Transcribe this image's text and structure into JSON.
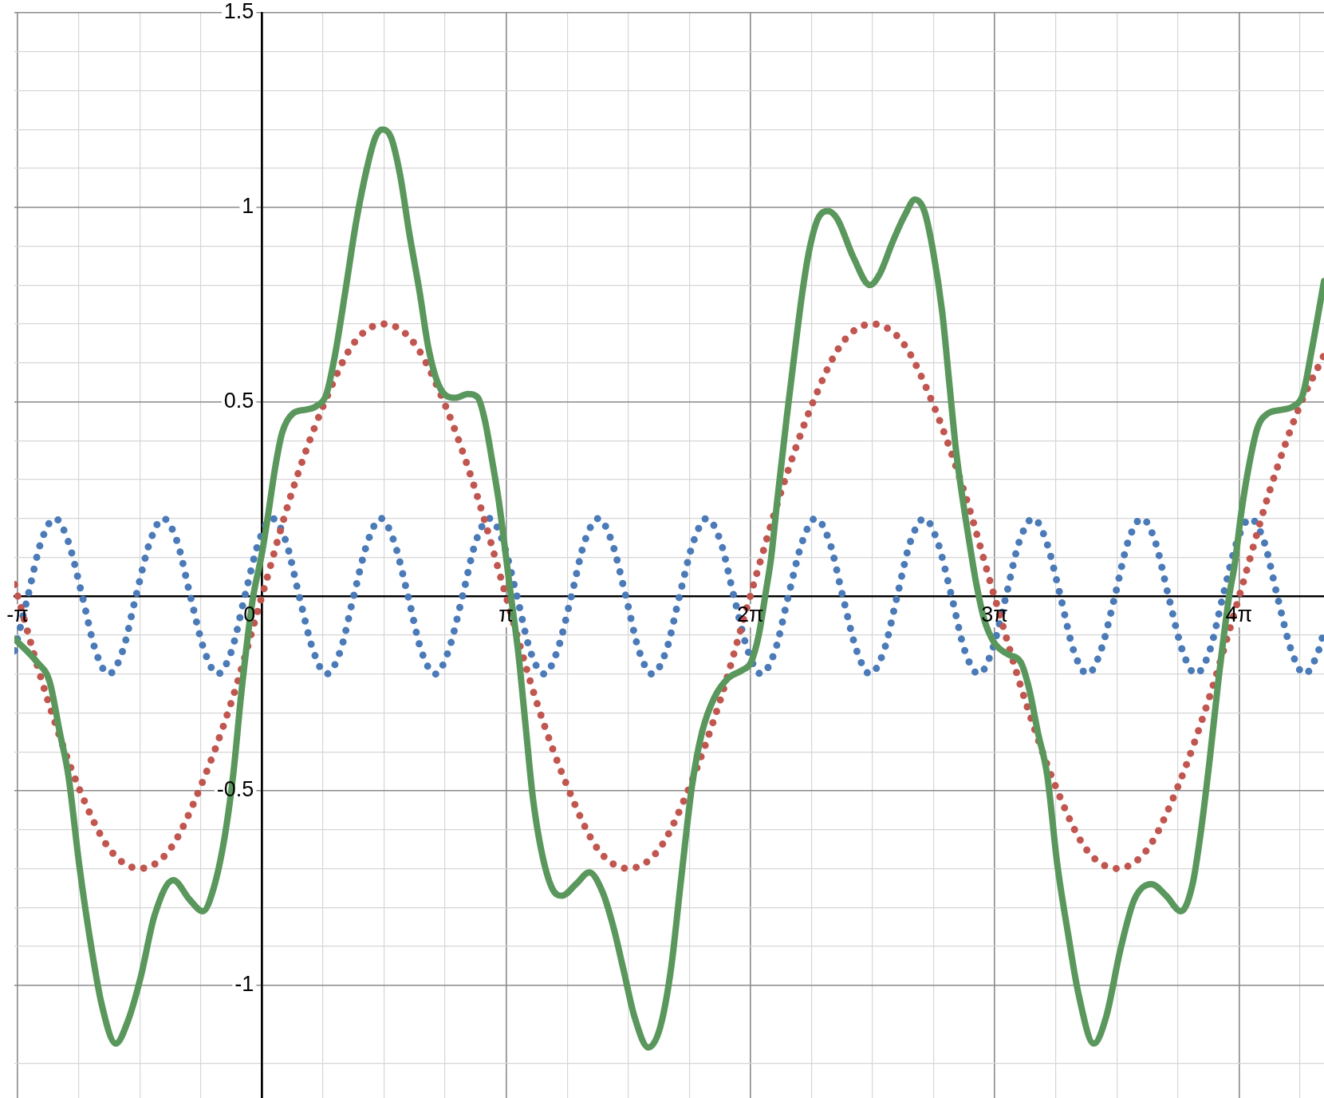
{
  "chart_data": {
    "type": "line",
    "xlim": [
      -3.184,
      13.66
    ],
    "ylim": [
      -1.29,
      1.5
    ],
    "xticks": [
      {
        "value": -3.1416,
        "label": "-π"
      },
      {
        "value": -2.3562,
        "label": null
      },
      {
        "value": -1.5708,
        "label": null
      },
      {
        "value": -0.7854,
        "label": null
      },
      0,
      {
        "value": 0.7854,
        "label": null
      },
      {
        "value": 1.5708,
        "label": null
      },
      {
        "value": 2.3562,
        "label": null
      },
      {
        "value": 3.1416,
        "label": "π"
      },
      {
        "value": 3.927,
        "label": null
      },
      {
        "value": 4.7124,
        "label": null
      },
      {
        "value": 5.4978,
        "label": null
      },
      {
        "value": 6.2832,
        "label": "2π"
      },
      {
        "value": 7.0686,
        "label": null
      },
      {
        "value": 7.854,
        "label": null
      },
      {
        "value": 8.6394,
        "label": null
      },
      {
        "value": 9.4248,
        "label": "3π"
      },
      {
        "value": 10.2102,
        "label": null
      },
      {
        "value": 10.9956,
        "label": null
      },
      {
        "value": 11.781,
        "label": null
      },
      {
        "value": 12.5664,
        "label": "4π"
      },
      {
        "value": 13.3518,
        "label": null
      }
    ],
    "yticks": [
      {
        "value": -1.2,
        "label": null
      },
      -1,
      {
        "value": -0.9,
        "label": null
      },
      {
        "value": -0.8,
        "label": null
      },
      {
        "value": -0.7,
        "label": null
      },
      {
        "value": -0.6,
        "label": null
      },
      -0.5,
      {
        "value": -0.4,
        "label": null
      },
      {
        "value": -0.3,
        "label": null
      },
      {
        "value": -0.2,
        "label": null
      },
      {
        "value": -0.1,
        "label": null
      },
      {
        "value": 0.1,
        "label": null
      },
      {
        "value": 0.2,
        "label": null
      },
      {
        "value": 0.3,
        "label": null
      },
      {
        "value": 0.4,
        "label": null
      },
      0.5,
      {
        "value": 0.6,
        "label": null
      },
      {
        "value": 0.7,
        "label": null
      },
      {
        "value": 0.8,
        "label": null
      },
      {
        "value": 0.9,
        "label": null
      },
      1,
      {
        "value": 1.1,
        "label": null
      },
      {
        "value": 1.2,
        "label": null
      },
      {
        "value": 1.3,
        "label": null
      },
      {
        "value": 1.4,
        "label": null
      },
      1.5
    ],
    "grid": true,
    "marker": "none",
    "series": [
      {
        "color": "#4a7ab8",
        "line_style": "dotted",
        "x": [
          -3.18,
          -3.01,
          -2.84,
          -2.66,
          -2.49,
          -2.31,
          -2.14,
          -1.97,
          -1.79,
          -1.62,
          -1.44,
          -1.27,
          -1.09,
          -0.92,
          -0.74,
          -0.57,
          -0.39,
          -0.22,
          -0.04,
          0.13,
          0.31,
          0.48,
          0.66,
          0.83,
          1.01,
          1.18,
          1.36,
          1.53,
          1.7,
          1.88,
          2.05,
          2.23,
          2.4,
          2.58,
          2.75,
          2.93,
          3.1,
          3.28,
          3.45,
          3.63,
          3.8,
          3.98,
          4.15,
          4.33,
          4.5,
          4.68,
          4.85,
          5.02,
          5.2,
          5.37,
          5.55,
          5.72,
          5.9,
          6.07,
          6.25,
          6.42,
          6.6,
          6.77,
          6.95,
          7.12,
          7.3,
          7.47,
          7.65,
          7.82,
          8.0,
          8.17,
          8.34,
          8.52,
          8.69,
          8.87,
          9.04,
          9.22,
          9.39,
          9.57,
          9.74,
          9.92,
          10.09,
          10.27,
          10.44,
          10.62,
          10.79,
          10.97,
          11.14,
          11.32,
          11.49,
          11.66,
          11.84,
          12.01,
          12.19,
          12.36,
          12.54,
          12.71,
          12.89,
          13.06,
          13.24,
          13.41,
          13.59,
          13.66
        ],
        "values": [
          -0.14,
          0,
          0.14,
          0.2,
          0.14,
          0,
          -0.14,
          -0.2,
          -0.14,
          0,
          0.14,
          0.2,
          0.14,
          0,
          -0.14,
          -0.2,
          -0.14,
          0,
          0.14,
          0.2,
          0.14,
          0,
          -0.14,
          -0.2,
          -0.14,
          0,
          0.14,
          0.2,
          0.14,
          0,
          -0.14,
          -0.2,
          -0.14,
          0,
          0.14,
          0.2,
          0.14,
          0,
          -0.14,
          -0.2,
          -0.14,
          0,
          0.14,
          0.2,
          0.14,
          0,
          -0.14,
          -0.2,
          -0.14,
          0,
          0.14,
          0.2,
          0.14,
          0,
          -0.14,
          -0.2,
          -0.14,
          0,
          0.14,
          0.2,
          0.14,
          0,
          -0.14,
          -0.2,
          -0.14,
          0,
          0.14,
          0.2,
          0.14,
          0,
          -0.14,
          -0.2,
          -0.14,
          0,
          0.14,
          0.2,
          0.14,
          0,
          -0.14,
          -0.2,
          -0.14,
          0,
          0.14,
          0.2,
          0.14,
          0,
          -0.14,
          -0.2,
          -0.14,
          0,
          0.14,
          0.2,
          0.14,
          0,
          -0.14,
          -0.2,
          -0.14,
          -0.09
        ]
      },
      {
        "color": "#c0564f",
        "line_style": "dotted",
        "x": [
          -3.18,
          -3.14,
          -2.75,
          -2.36,
          -1.96,
          -1.57,
          -1.18,
          -0.79,
          -0.39,
          0,
          0.39,
          0.79,
          1.18,
          1.57,
          1.96,
          2.36,
          2.75,
          3.14,
          3.53,
          3.93,
          4.32,
          4.71,
          5.11,
          5.5,
          5.89,
          6.28,
          6.68,
          7.07,
          7.46,
          7.85,
          8.25,
          8.64,
          9.03,
          9.42,
          9.82,
          10.21,
          10.6,
          11.0,
          11.39,
          11.78,
          12.17,
          12.57,
          12.96,
          13.35,
          13.66
        ],
        "values": [
          0.03,
          0,
          -0.27,
          -0.49,
          -0.65,
          -0.7,
          -0.65,
          -0.49,
          -0.27,
          0,
          0.27,
          0.49,
          0.65,
          0.7,
          0.65,
          0.49,
          0.27,
          0,
          -0.27,
          -0.49,
          -0.65,
          -0.7,
          -0.65,
          -0.49,
          -0.27,
          0,
          0.27,
          0.49,
          0.65,
          0.7,
          0.65,
          0.49,
          0.27,
          0,
          -0.27,
          -0.49,
          -0.65,
          -0.7,
          -0.65,
          -0.49,
          -0.27,
          0,
          0.27,
          0.49,
          0.62
        ]
      },
      {
        "color": "#5a975c",
        "line_style": "solid",
        "x": [
          -3.18,
          -2.89,
          -2.73,
          -2.6,
          -2.49,
          -2.35,
          -2.22,
          -2.06,
          -1.88,
          -1.72,
          -1.56,
          -1.38,
          -1.14,
          -0.93,
          -0.76,
          -0.62,
          -0.48,
          -0.37,
          -0.26,
          -0.12,
          0,
          0.08,
          0.17,
          0.26,
          0.4,
          0.58,
          0.71,
          0.83,
          0.94,
          1.07,
          1.21,
          1.35,
          1.46,
          1.55,
          1.66,
          1.78,
          1.89,
          2.03,
          2.14,
          2.28,
          2.49,
          2.65,
          2.78,
          2.87,
          2.96,
          3.05,
          3.14,
          3.21,
          3.3,
          3.39,
          3.48,
          3.59,
          3.73,
          3.86,
          4.04,
          4.21,
          4.38,
          4.52,
          4.65,
          4.79,
          4.97,
          5.12,
          5.26,
          5.39,
          5.53,
          5.66,
          5.82,
          6.0,
          6.18,
          6.29,
          6.39,
          6.48,
          6.55,
          6.63,
          6.75,
          6.86,
          6.95,
          7.04,
          7.15,
          7.28,
          7.4,
          7.61,
          7.82,
          7.95,
          8.11,
          8.27,
          8.4,
          8.52,
          8.63,
          8.75,
          8.84,
          8.93,
          9.02,
          9.13,
          9.19,
          9.29,
          9.42,
          9.6,
          9.76,
          9.87,
          9.98,
          10.1,
          10.23,
          10.37,
          10.5,
          10.7,
          10.86,
          11.04,
          11.22,
          11.44,
          11.63,
          11.82,
          11.97,
          12.08,
          12.19,
          12.3,
          12.44,
          12.51,
          12.6,
          12.69,
          12.8,
          12.94,
          13.14,
          13.28,
          13.39,
          13.5,
          13.66
        ],
        "values": [
          -0.11,
          -0.17,
          -0.22,
          -0.35,
          -0.46,
          -0.69,
          -0.87,
          -1.05,
          -1.15,
          -1.09,
          -0.98,
          -0.82,
          -0.73,
          -0.78,
          -0.81,
          -0.75,
          -0.62,
          -0.46,
          -0.24,
          -0.01,
          0.11,
          0.21,
          0.33,
          0.42,
          0.47,
          0.48,
          0.49,
          0.52,
          0.62,
          0.78,
          0.96,
          1.1,
          1.18,
          1.2,
          1.18,
          1.08,
          0.94,
          0.78,
          0.64,
          0.54,
          0.51,
          0.52,
          0.51,
          0.45,
          0.35,
          0.24,
          0.1,
          -0.01,
          -0.15,
          -0.33,
          -0.51,
          -0.65,
          -0.75,
          -0.77,
          -0.74,
          -0.71,
          -0.76,
          -0.85,
          -0.96,
          -1.08,
          -1.16,
          -1.11,
          -0.96,
          -0.73,
          -0.49,
          -0.35,
          -0.26,
          -0.21,
          -0.19,
          -0.17,
          -0.1,
          0.01,
          0.1,
          0.25,
          0.46,
          0.64,
          0.78,
          0.89,
          0.97,
          0.99,
          0.97,
          0.87,
          0.8,
          0.83,
          0.91,
          0.98,
          1.02,
          0.99,
          0.89,
          0.73,
          0.55,
          0.37,
          0.24,
          0.1,
          0.03,
          -0.06,
          -0.12,
          -0.15,
          -0.17,
          -0.24,
          -0.35,
          -0.46,
          -0.69,
          -0.87,
          -1.02,
          -1.15,
          -1.08,
          -0.91,
          -0.78,
          -0.74,
          -0.77,
          -0.81,
          -0.74,
          -0.6,
          -0.42,
          -0.22,
          0.0,
          0.08,
          0.22,
          0.33,
          0.43,
          0.47,
          0.48,
          0.49,
          0.52,
          0.63,
          0.81
        ]
      }
    ]
  }
}
